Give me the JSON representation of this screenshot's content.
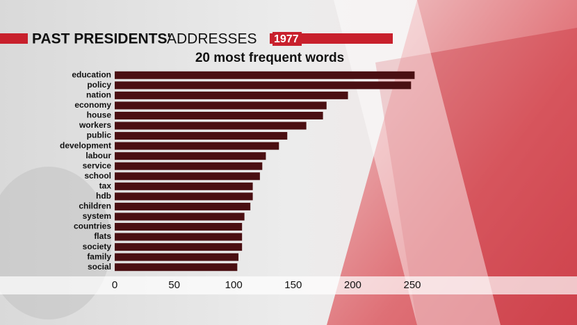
{
  "chart_data": {
    "type": "bar",
    "orientation": "horizontal",
    "title": "PAST PRESIDENTS'",
    "title_suffix": "ADDRESSES",
    "year": "1977",
    "subtitle": "20 most frequent words",
    "categories": [
      "education",
      "policy",
      "nation",
      "economy",
      "house",
      "workers",
      "public",
      "development",
      "labour",
      "service",
      "school",
      "tax",
      "hdb",
      "children",
      "system",
      "countries",
      "flats",
      "society",
      "family",
      "social"
    ],
    "values": [
      252,
      249,
      196,
      178,
      175,
      161,
      145,
      138,
      127,
      124,
      122,
      116,
      116,
      114,
      109,
      107,
      107,
      107,
      104,
      103
    ],
    "color": "#4a0f12",
    "xlim": [
      0,
      250
    ],
    "xticks": [
      0,
      50,
      100,
      150,
      200,
      250
    ]
  }
}
